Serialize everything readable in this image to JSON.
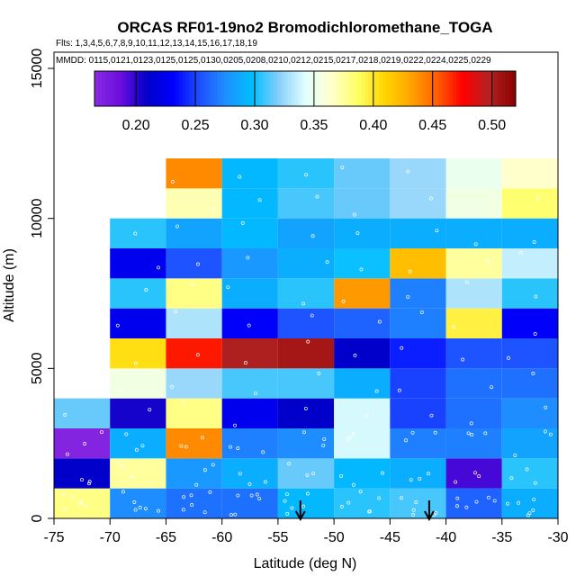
{
  "chart_data": {
    "type": "heatmap",
    "title": "ORCAS RF01-19no2 Bromodichloromethane_TOGA",
    "subtitle_flights": "Flts: 1,3,4,5,6,7,8,9,10,11,12,13,14,15,16,17,18,19",
    "subtitle_dates": "MMDD: 0115,0121,0123,0125,0125,0130,0205,0208,0210,0212,0215,0217,0218,0219,0222,0224,0225,0229",
    "xlabel": "Latitude (deg N)",
    "ylabel": "Altitude (m)",
    "xlim": [
      -75,
      -30
    ],
    "ylim": [
      0,
      15000
    ],
    "x_ticks": [
      -75,
      -70,
      -65,
      -60,
      -55,
      -50,
      -45,
      -40,
      -35,
      -30
    ],
    "y_ticks": [
      0,
      5000,
      10000,
      15000
    ],
    "x_tick_labels": [
      "-75",
      "-70",
      "-65",
      "-60",
      "-55",
      "-50",
      "-45",
      "-40",
      "-35",
      "-30"
    ],
    "y_tick_labels": [
      "0",
      "5000",
      "10000",
      "15000"
    ],
    "colorbar": {
      "range": [
        0.165,
        0.52
      ],
      "ticks": [
        0.2,
        0.25,
        0.3,
        0.35,
        0.4,
        0.45,
        0.5
      ],
      "tick_labels": [
        "0.20",
        "0.25",
        "0.30",
        "0.35",
        "0.40",
        "0.45",
        "0.50"
      ],
      "colors": [
        "#8a2be2",
        "#6a0dde",
        "#0000c8",
        "#0000ff",
        "#1e50ff",
        "#1e90ff",
        "#00bfff",
        "#87cefa",
        "#e0ffff",
        "#ffffcc",
        "#ffff66",
        "#ffd700",
        "#ffa500",
        "#ff6000",
        "#ff0000",
        "#b22222",
        "#8b0000"
      ]
    },
    "lat_bins": [
      -75,
      -70,
      -65,
      -60,
      -55,
      -50,
      -45,
      -40,
      -35
    ],
    "alt_bin_size": 1000,
    "cells": [
      {
        "lat": -75,
        "alt": 0,
        "value": 0.38
      },
      {
        "lat": -75,
        "alt": 1000,
        "value": 0.21
      },
      {
        "lat": -75,
        "alt": 2000,
        "value": 0.17
      },
      {
        "lat": -75,
        "alt": 3000,
        "value": 0.315
      },
      {
        "lat": -70,
        "alt": 0,
        "value": 0.275
      },
      {
        "lat": -70,
        "alt": 1000,
        "value": 0.375
      },
      {
        "lat": -70,
        "alt": 2000,
        "value": 0.29
      },
      {
        "lat": -70,
        "alt": 3000,
        "value": 0.205
      },
      {
        "lat": -70,
        "alt": 4000,
        "value": 0.355
      },
      {
        "lat": -70,
        "alt": 5000,
        "value": 0.405
      },
      {
        "lat": -70,
        "alt": 6000,
        "value": 0.225
      },
      {
        "lat": -70,
        "alt": 7000,
        "value": 0.305
      },
      {
        "lat": -70,
        "alt": 8000,
        "value": 0.225
      },
      {
        "lat": -70,
        "alt": 9000,
        "value": 0.305
      },
      {
        "lat": -65,
        "alt": 0,
        "value": 0.265
      },
      {
        "lat": -65,
        "alt": 1000,
        "value": 0.28
      },
      {
        "lat": -65,
        "alt": 2000,
        "value": 0.44
      },
      {
        "lat": -65,
        "alt": 3000,
        "value": 0.38
      },
      {
        "lat": -65,
        "alt": 4000,
        "value": 0.325
      },
      {
        "lat": -65,
        "alt": 5000,
        "value": 0.47
      },
      {
        "lat": -65,
        "alt": 6000,
        "value": 0.33
      },
      {
        "lat": -65,
        "alt": 7000,
        "value": 0.38
      },
      {
        "lat": -65,
        "alt": 8000,
        "value": 0.255
      },
      {
        "lat": -65,
        "alt": 9000,
        "value": 0.285
      },
      {
        "lat": -65,
        "alt": 10000,
        "value": 0.37
      },
      {
        "lat": -65,
        "alt": 11000,
        "value": 0.44
      },
      {
        "lat": -60,
        "alt": 0,
        "value": 0.265
      },
      {
        "lat": -60,
        "alt": 1000,
        "value": 0.29
      },
      {
        "lat": -60,
        "alt": 2000,
        "value": 0.27
      },
      {
        "lat": -60,
        "alt": 3000,
        "value": 0.225
      },
      {
        "lat": -60,
        "alt": 4000,
        "value": 0.31
      },
      {
        "lat": -60,
        "alt": 5000,
        "value": 0.5
      },
      {
        "lat": -60,
        "alt": 6000,
        "value": 0.23
      },
      {
        "lat": -60,
        "alt": 7000,
        "value": 0.29
      },
      {
        "lat": -60,
        "alt": 8000,
        "value": 0.28
      },
      {
        "lat": -60,
        "alt": 9000,
        "value": 0.295
      },
      {
        "lat": -60,
        "alt": 10000,
        "value": 0.295
      },
      {
        "lat": -60,
        "alt": 11000,
        "value": 0.295
      },
      {
        "lat": -55,
        "alt": 0,
        "value": 0.295
      },
      {
        "lat": -55,
        "alt": 1000,
        "value": 0.315
      },
      {
        "lat": -55,
        "alt": 2000,
        "value": 0.275
      },
      {
        "lat": -55,
        "alt": 3000,
        "value": 0.21
      },
      {
        "lat": -55,
        "alt": 4000,
        "value": 0.31
      },
      {
        "lat": -55,
        "alt": 5000,
        "value": 0.505
      },
      {
        "lat": -55,
        "alt": 6000,
        "value": 0.255
      },
      {
        "lat": -55,
        "alt": 7000,
        "value": 0.305
      },
      {
        "lat": -55,
        "alt": 8000,
        "value": 0.29
      },
      {
        "lat": -55,
        "alt": 9000,
        "value": 0.285
      },
      {
        "lat": -55,
        "alt": 10000,
        "value": 0.31
      },
      {
        "lat": -55,
        "alt": 11000,
        "value": 0.305
      },
      {
        "lat": -50,
        "alt": 0,
        "value": 0.305
      },
      {
        "lat": -50,
        "alt": 1000,
        "value": 0.295
      },
      {
        "lat": -50,
        "alt": 2000,
        "value": 0.34
      },
      {
        "lat": -50,
        "alt": 3000,
        "value": 0.34
      },
      {
        "lat": -50,
        "alt": 4000,
        "value": 0.29
      },
      {
        "lat": -50,
        "alt": 5000,
        "value": 0.21
      },
      {
        "lat": -50,
        "alt": 6000,
        "value": 0.26
      },
      {
        "lat": -50,
        "alt": 7000,
        "value": 0.435
      },
      {
        "lat": -50,
        "alt": 8000,
        "value": 0.3
      },
      {
        "lat": -50,
        "alt": 9000,
        "value": 0.29
      },
      {
        "lat": -50,
        "alt": 10000,
        "value": 0.315
      },
      {
        "lat": -50,
        "alt": 11000,
        "value": 0.315
      },
      {
        "lat": -45,
        "alt": 0,
        "value": 0.31
      },
      {
        "lat": -45,
        "alt": 1000,
        "value": 0.29
      },
      {
        "lat": -45,
        "alt": 2000,
        "value": 0.27
      },
      {
        "lat": -45,
        "alt": 3000,
        "value": 0.25
      },
      {
        "lat": -45,
        "alt": 4000,
        "value": 0.25
      },
      {
        "lat": -45,
        "alt": 5000,
        "value": 0.24
      },
      {
        "lat": -45,
        "alt": 6000,
        "value": 0.27
      },
      {
        "lat": -45,
        "alt": 7000,
        "value": 0.27
      },
      {
        "lat": -45,
        "alt": 8000,
        "value": 0.42
      },
      {
        "lat": -45,
        "alt": 9000,
        "value": 0.29
      },
      {
        "lat": -45,
        "alt": 10000,
        "value": 0.325
      },
      {
        "lat": -45,
        "alt": 11000,
        "value": 0.325
      },
      {
        "lat": -40,
        "alt": 0,
        "value": 0.26
      },
      {
        "lat": -40,
        "alt": 1000,
        "value": 0.195
      },
      {
        "lat": -40,
        "alt": 2000,
        "value": 0.27
      },
      {
        "lat": -40,
        "alt": 3000,
        "value": 0.265
      },
      {
        "lat": -40,
        "alt": 4000,
        "value": 0.265
      },
      {
        "lat": -40,
        "alt": 5000,
        "value": 0.255
      },
      {
        "lat": -40,
        "alt": 6000,
        "value": 0.395
      },
      {
        "lat": -40,
        "alt": 7000,
        "value": 0.33
      },
      {
        "lat": -40,
        "alt": 8000,
        "value": 0.375
      },
      {
        "lat": -40,
        "alt": 9000,
        "value": 0.29
      },
      {
        "lat": -40,
        "alt": 10000,
        "value": 0.355
      },
      {
        "lat": -40,
        "alt": 11000,
        "value": 0.35
      },
      {
        "lat": -35,
        "alt": 0,
        "value": 0.29
      },
      {
        "lat": -35,
        "alt": 1000,
        "value": 0.305
      },
      {
        "lat": -35,
        "alt": 2000,
        "value": 0.285
      },
      {
        "lat": -35,
        "alt": 3000,
        "value": 0.275
      },
      {
        "lat": -35,
        "alt": 4000,
        "value": 0.265
      },
      {
        "lat": -35,
        "alt": 5000,
        "value": 0.255
      },
      {
        "lat": -35,
        "alt": 6000,
        "value": 0.23
      },
      {
        "lat": -35,
        "alt": 7000,
        "value": 0.305
      },
      {
        "lat": -35,
        "alt": 8000,
        "value": 0.335
      },
      {
        "lat": -35,
        "alt": 9000,
        "value": 0.29
      },
      {
        "lat": -35,
        "alt": 10000,
        "value": 0.385
      },
      {
        "lat": -35,
        "alt": 11000,
        "value": 0.365
      }
    ],
    "arrow_markers_lat": [
      -53,
      -41.5
    ]
  }
}
